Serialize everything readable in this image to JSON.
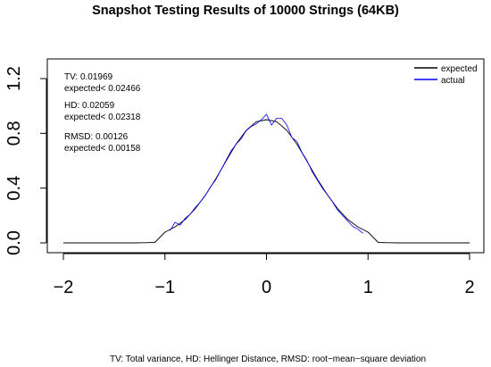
{
  "chart_data": {
    "type": "line",
    "title": "Snapshot Testing Results of 10000 Strings (64KB)",
    "xlabel": "",
    "ylabel": "",
    "caption": "TV: Total variance, HD: Hellinger Distance, RMSD: root−mean−square deviation",
    "xlim": [
      -2,
      2
    ],
    "ylim": [
      0,
      1.3
    ],
    "x_ticks": [
      -2,
      -1,
      0,
      1,
      2
    ],
    "x_tick_labels": [
      "−2",
      "−1",
      "0",
      "1",
      "2"
    ],
    "y_ticks": [
      0.0,
      0.4,
      0.8,
      1.2
    ],
    "y_tick_labels": [
      "0.0",
      "0.4",
      "0.8",
      "1.2"
    ],
    "grid": false,
    "legend_position": "top-right",
    "stats": [
      {
        "line1": "TV: 0.01969",
        "line2": "expected< 0.02466"
      },
      {
        "line1": "HD: 0.02059",
        "line2": "expected< 0.02318"
      },
      {
        "line1": "RMSD: 0.00126",
        "line2": "expected< 0.00158"
      }
    ],
    "series": [
      {
        "name": "expected",
        "color": "#000000",
        "x": [
          -2.0,
          -1.9,
          -1.8,
          -1.7,
          -1.6,
          -1.5,
          -1.4,
          -1.3,
          -1.2,
          -1.1,
          -1.0,
          -0.9,
          -0.8,
          -0.7,
          -0.6,
          -0.5,
          -0.4,
          -0.3,
          -0.2,
          -0.1,
          0.0,
          0.1,
          0.2,
          0.3,
          0.4,
          0.5,
          0.6,
          0.7,
          0.8,
          0.9,
          1.0,
          1.1,
          1.2,
          1.3,
          1.4,
          1.5,
          1.6,
          1.7,
          1.8,
          1.9,
          2.0
        ],
        "y": [
          0.0,
          0.0,
          0.0,
          0.0,
          0.0,
          0.0,
          0.0,
          0.0,
          0.001,
          0.003,
          0.078,
          0.117,
          0.171,
          0.251,
          0.351,
          0.466,
          0.595,
          0.721,
          0.822,
          0.885,
          0.9,
          0.885,
          0.822,
          0.721,
          0.595,
          0.466,
          0.351,
          0.251,
          0.171,
          0.117,
          0.078,
          0.003,
          0.001,
          0.0,
          0.0,
          0.0,
          0.0,
          0.0,
          0.0,
          0.0,
          0.0
        ]
      },
      {
        "name": "actual",
        "color": "#0000ff",
        "x": [
          -0.95,
          -0.9,
          -0.85,
          -0.8,
          -0.75,
          -0.7,
          -0.65,
          -0.6,
          -0.55,
          -0.5,
          -0.45,
          -0.4,
          -0.35,
          -0.3,
          -0.25,
          -0.2,
          -0.15,
          -0.1,
          -0.05,
          0.0,
          0.05,
          0.1,
          0.15,
          0.2,
          0.25,
          0.3,
          0.35,
          0.4,
          0.45,
          0.5,
          0.55,
          0.6,
          0.65,
          0.7,
          0.75,
          0.8,
          0.85,
          0.9,
          0.95
        ],
        "y": [
          0.09,
          0.15,
          0.13,
          0.18,
          0.21,
          0.26,
          0.3,
          0.35,
          0.41,
          0.46,
          0.53,
          0.6,
          0.67,
          0.72,
          0.76,
          0.82,
          0.85,
          0.87,
          0.9,
          0.94,
          0.86,
          0.91,
          0.91,
          0.86,
          0.77,
          0.74,
          0.66,
          0.6,
          0.52,
          0.46,
          0.4,
          0.35,
          0.3,
          0.24,
          0.2,
          0.16,
          0.12,
          0.1,
          0.07
        ]
      }
    ]
  }
}
